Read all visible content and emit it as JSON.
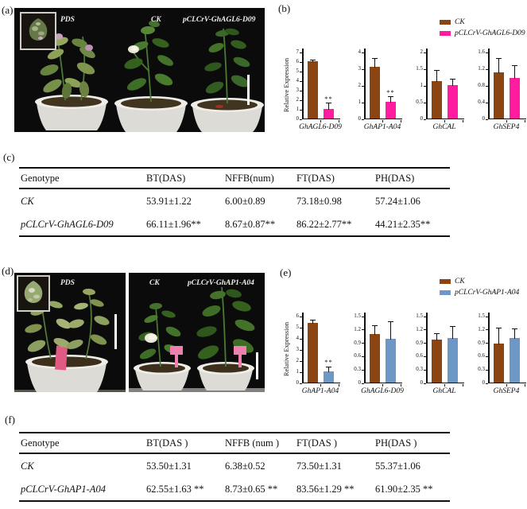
{
  "colors": {
    "ck": "#8B4513",
    "agl6": "#FF1C9E",
    "ap1": "#6D97C5",
    "axis": "#111111"
  },
  "panels": {
    "a": {
      "label": "(a)",
      "plant_labels": [
        "PDS",
        "CK",
        "pCLCrV-GhAGL6-D09"
      ]
    },
    "b": {
      "label": "(b)",
      "legend": {
        "ck": "CK",
        "treatment": "pCLCrV-GhAGL6-D09"
      }
    },
    "c": {
      "label": "(c)"
    },
    "d": {
      "label": "(d)",
      "plant_labels": [
        "PDS",
        "CK",
        "pCLCrV-GhAP1-A04"
      ]
    },
    "e": {
      "label": "(e)",
      "legend": {
        "ck": "CK",
        "treatment": "pCLCrV-GhAP1-A04"
      }
    },
    "f": {
      "label": "(f)"
    }
  },
  "chart_data": [
    {
      "panel": "b",
      "type": "bar",
      "xlabel": "GhAGL6-D09",
      "ylabel": "Relative Expression",
      "ylim": [
        0,
        7
      ],
      "yticks": [
        "0",
        "1",
        "2",
        "3",
        "4",
        "5",
        "6",
        "7"
      ],
      "categories": [
        "CK",
        "pCLCrV-GhAGL6-D09"
      ],
      "series": [
        {
          "name": "CK",
          "value": 6.0,
          "error": 0.2,
          "color": "#8B4513"
        },
        {
          "name": "pCLCrV-GhAGL6-D09",
          "value": 1.0,
          "error": 0.65,
          "color": "#FF1C9E",
          "sig": "**"
        }
      ]
    },
    {
      "panel": "b",
      "type": "bar",
      "xlabel": "GhAP1-A04",
      "ylim": [
        0,
        4
      ],
      "yticks": [
        "0",
        "1",
        "2",
        "3",
        "4"
      ],
      "categories": [
        "CK",
        "pCLCrV-GhAGL6-D09"
      ],
      "series": [
        {
          "name": "CK",
          "value": 3.1,
          "error": 0.5,
          "color": "#8B4513"
        },
        {
          "name": "pCLCrV-GhAGL6-D09",
          "value": 1.0,
          "error": 0.33,
          "color": "#FF1C9E",
          "sig": "**"
        }
      ]
    },
    {
      "panel": "b",
      "type": "bar",
      "xlabel": "GhCAL",
      "ylim": [
        0,
        2
      ],
      "yticks": [
        "0",
        "0.5",
        "1",
        "1.5",
        "2"
      ],
      "categories": [
        "CK",
        "pCLCrV-GhAGL6-D09"
      ],
      "series": [
        {
          "name": "CK",
          "value": 1.12,
          "error": 0.34,
          "color": "#8B4513"
        },
        {
          "name": "pCLCrV-GhAGL6-D09",
          "value": 1.0,
          "error": 0.18,
          "color": "#FF1C9E"
        }
      ]
    },
    {
      "panel": "b",
      "type": "bar",
      "xlabel": "GhSEP4",
      "ylim": [
        0,
        1.6
      ],
      "yticks": [
        "0",
        "0.4",
        "0.8",
        "1.2",
        "1.6"
      ],
      "categories": [
        "CK",
        "pCLCrV-GhAGL6-D09"
      ],
      "series": [
        {
          "name": "CK",
          "value": 1.1,
          "error": 0.35,
          "color": "#8B4513"
        },
        {
          "name": "pCLCrV-GhAGL6-D09",
          "value": 0.98,
          "error": 0.3,
          "color": "#FF1C9E"
        }
      ]
    },
    {
      "panel": "e",
      "type": "bar",
      "xlabel": "GhAP1-A04",
      "ylabel": "Relative Expression",
      "ylim": [
        0,
        6
      ],
      "yticks": [
        "0",
        "1",
        "2",
        "3",
        "4",
        "5",
        "6"
      ],
      "categories": [
        "CK",
        "pCLCrV-GhAP1-A04"
      ],
      "series": [
        {
          "name": "CK",
          "value": 5.35,
          "error": 0.3,
          "color": "#8B4513"
        },
        {
          "name": "pCLCrV-GhAP1-A04",
          "value": 1.0,
          "error": 0.45,
          "color": "#6D97C5",
          "sig": "**"
        }
      ]
    },
    {
      "panel": "e",
      "type": "bar",
      "xlabel": "GhAGL6-D09",
      "ylim": [
        0,
        1.5
      ],
      "yticks": [
        "0",
        "0.3",
        "0.6",
        "0.9",
        "1.2",
        "1.5"
      ],
      "categories": [
        "CK",
        "pCLCrV-GhAP1-A04"
      ],
      "series": [
        {
          "name": "CK",
          "value": 1.09,
          "error": 0.19,
          "color": "#8B4513"
        },
        {
          "name": "pCLCrV-GhAP1-A04",
          "value": 0.99,
          "error": 0.38,
          "color": "#6D97C5"
        }
      ]
    },
    {
      "panel": "e",
      "type": "bar",
      "xlabel": "GhCAL",
      "ylim": [
        0,
        1.5
      ],
      "yticks": [
        "0",
        "0.3",
        "0.6",
        "0.9",
        "1.2",
        "1.5"
      ],
      "categories": [
        "CK",
        "pCLCrV-GhAP1-A04"
      ],
      "series": [
        {
          "name": "CK",
          "value": 0.96,
          "error": 0.15,
          "color": "#8B4513"
        },
        {
          "name": "pCLCrV-GhAP1-A04",
          "value": 1.0,
          "error": 0.27,
          "color": "#6D97C5"
        }
      ]
    },
    {
      "panel": "e",
      "type": "bar",
      "xlabel": "GhSEP4",
      "ylim": [
        0,
        1.5
      ],
      "yticks": [
        "0",
        "0.3",
        "0.6",
        "0.9",
        "1.2",
        "1.5"
      ],
      "categories": [
        "CK",
        "pCLCrV-GhAP1-A04"
      ],
      "series": [
        {
          "name": "CK",
          "value": 0.88,
          "error": 0.35,
          "color": "#8B4513"
        },
        {
          "name": "pCLCrV-GhAP1-A04",
          "value": 1.0,
          "error": 0.21,
          "color": "#6D97C5"
        }
      ]
    }
  ],
  "tables": {
    "c": {
      "headers": [
        "Genotype",
        "BT(DAS)",
        "NFFB(num)",
        "FT(DAS)",
        "PH(DAS)"
      ],
      "rows": [
        [
          "CK",
          "53.91±1.22",
          "6.00±0.89",
          "73.18±0.98",
          "57.24±1.06"
        ],
        [
          "pCLCrV-GhAGL6-D09",
          "66.11±1.96**",
          "8.67±0.87**",
          "86.22±2.77**",
          "44.21±2.35**"
        ]
      ]
    },
    "f": {
      "headers": [
        "Genotype",
        "BT(DAS )",
        "NFFB (num )",
        "FT(DAS )",
        "PH(DAS )"
      ],
      "rows": [
        [
          "CK",
          "53.50±1.31",
          "6.38±0.52",
          "73.50±1.31",
          "55.37±1.06"
        ],
        [
          "pCLCrV-GhAP1-A04",
          "62.55±1.63 **",
          "8.73±0.65 **",
          "83.56±1.29 **",
          "61.90±2.35 **"
        ]
      ]
    }
  }
}
